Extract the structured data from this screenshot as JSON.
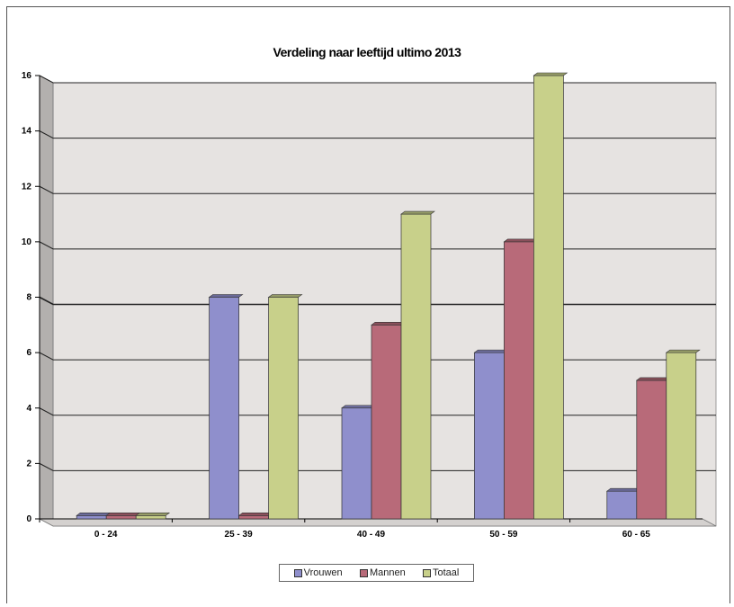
{
  "chart_data": {
    "type": "bar",
    "title": "Verdeling naar leeftijd ultimo 2013",
    "xlabel": "",
    "ylabel": "",
    "categories": [
      "0 - 24",
      "25 - 39",
      "40 - 49",
      "50 - 59",
      "60 - 65"
    ],
    "series": [
      {
        "name": "Vrouwen",
        "values": [
          0,
          8,
          4,
          6,
          1
        ],
        "color": "#8f8fcc"
      },
      {
        "name": "Mannen",
        "values": [
          0,
          0,
          7,
          10,
          5
        ],
        "color": "#b86a79"
      },
      {
        "name": "Totaal",
        "values": [
          0,
          8,
          11,
          16,
          6
        ],
        "color": "#c8d08a"
      }
    ],
    "ylim": [
      0,
      16
    ],
    "yticks": [
      0,
      2,
      4,
      6,
      8,
      10,
      12,
      14,
      16
    ],
    "grid": true,
    "legend_position": "bottom",
    "three_d": true
  }
}
